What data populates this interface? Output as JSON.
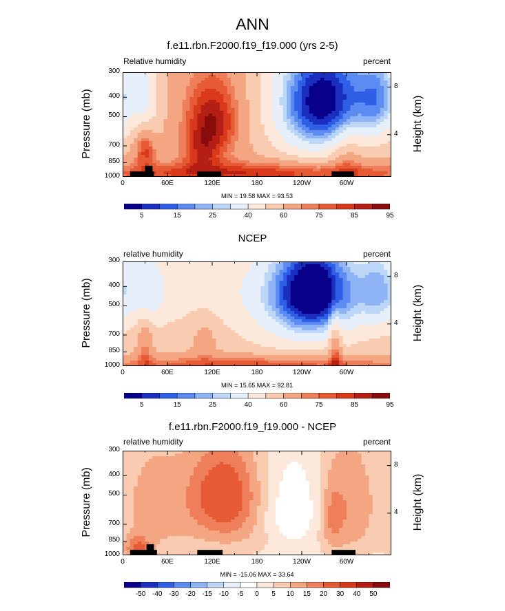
{
  "main_title": "ANN",
  "colors": {
    "scale_abs": [
      "#08008a",
      "#1a2fbf",
      "#2f5fe6",
      "#5c8cf2",
      "#8eb4f6",
      "#bcd6f7",
      "#e6effa",
      "#fde9dc",
      "#f9cbb0",
      "#f4a582",
      "#ee7f5a",
      "#e65a35",
      "#d8391a",
      "#b51e14",
      "#890c0c"
    ],
    "scale_diff": [
      "#08008a",
      "#1a2fbf",
      "#2f5fe6",
      "#5c8cf2",
      "#8eb4f6",
      "#bcd6f7",
      "#e6effa",
      "#ffffff",
      "#fde9dc",
      "#f9cbb0",
      "#f4a582",
      "#ee7f5a",
      "#e65a35",
      "#d8391a",
      "#b51e14",
      "#890c0c"
    ],
    "terrain": "#000000"
  },
  "chart_data": [
    {
      "type": "heatmap",
      "title": "f.e11.rbn.F2000.f19_f19.000 (yrs 2-5)",
      "left_label": "Relative humidity",
      "right_label": "percent",
      "ylabel": "Pressure (mb)",
      "ylabel_right": "Height (km)",
      "y_ticks": [
        "300",
        "400",
        "500",
        "700",
        "850",
        "1000"
      ],
      "y_tick_values": [
        300,
        400,
        500,
        700,
        850,
        1000
      ],
      "y_right_ticks": [
        "8",
        "4"
      ],
      "x_ticks": [
        "0",
        "60E",
        "120E",
        "180",
        "120W",
        "60W"
      ],
      "x_tick_values": [
        0,
        60,
        120,
        180,
        240,
        300
      ],
      "xlim": [
        0,
        360
      ],
      "ylim": [
        1000,
        300
      ],
      "minmax": "MIN =  19.58  MAX =  93.53",
      "colorbar_labels": [
        "5",
        "15",
        "25",
        "40",
        "60",
        "75",
        "85",
        "95"
      ],
      "scale": "abs",
      "levels": [
        5,
        10,
        15,
        20,
        25,
        30,
        40,
        50,
        60,
        70,
        75,
        80,
        85,
        90,
        95
      ],
      "features": [
        {
          "lon": 275,
          "p": 400,
          "lw": 50,
          "pw": 200,
          "v": -45
        },
        {
          "lon": 255,
          "p": 500,
          "lw": 40,
          "pw": 260,
          "v": -18
        },
        {
          "lon": 30,
          "p": 400,
          "lw": 14,
          "pw": 140,
          "v": -20
        },
        {
          "lon": 345,
          "p": 400,
          "lw": 20,
          "pw": 150,
          "v": -25
        },
        {
          "lon": 120,
          "p": 520,
          "lw": 28,
          "pw": 180,
          "v": 30
        },
        {
          "lon": 30,
          "p": 720,
          "lw": 10,
          "pw": 120,
          "v": 22
        },
        {
          "lon": 105,
          "p": 760,
          "lw": 18,
          "pw": 120,
          "v": 15
        },
        {
          "lon": 180,
          "p": 960,
          "lw": 180,
          "pw": 90,
          "v": 25
        },
        {
          "lon": 300,
          "p": 760,
          "lw": 14,
          "pw": 180,
          "v": 12
        }
      ],
      "base": 60,
      "terrain": [
        [
          10,
          940,
          42,
          1000
        ],
        [
          30,
          880,
          40,
          1000
        ],
        [
          100,
          940,
          132,
          1000
        ],
        [
          280,
          940,
          310,
          1000
        ]
      ]
    },
    {
      "type": "heatmap",
      "title": "NCEP",
      "left_label": "relative humidity",
      "right_label": "percent",
      "ylabel": "Pressure (mb)",
      "ylabel_right": "Height (km)",
      "y_ticks": [
        "300",
        "400",
        "500",
        "700",
        "850",
        "1000"
      ],
      "y_tick_values": [
        300,
        400,
        500,
        700,
        850,
        1000
      ],
      "y_right_ticks": [
        "8",
        "4"
      ],
      "x_ticks": [
        "0",
        "60E",
        "120E",
        "180",
        "120W",
        "60W"
      ],
      "x_tick_values": [
        0,
        60,
        120,
        180,
        240,
        300
      ],
      "xlim": [
        0,
        360
      ],
      "ylim": [
        1000,
        300
      ],
      "minmax": "MIN =  15.65  MAX =  92.81",
      "colorbar_labels": [
        "5",
        "15",
        "25",
        "40",
        "60",
        "75",
        "85",
        "95"
      ],
      "scale": "abs",
      "levels": [
        5,
        10,
        15,
        20,
        25,
        30,
        40,
        50,
        60,
        70,
        75,
        80,
        85,
        90,
        95
      ],
      "features": [
        {
          "lon": 260,
          "p": 420,
          "lw": 40,
          "pw": 160,
          "v": -45
        },
        {
          "lon": 240,
          "p": 500,
          "lw": 50,
          "pw": 250,
          "v": -18
        },
        {
          "lon": 120,
          "p": 420,
          "lw": 80,
          "pw": 150,
          "v": -10
        },
        {
          "lon": 35,
          "p": 420,
          "lw": 16,
          "pw": 130,
          "v": -18
        },
        {
          "lon": 345,
          "p": 420,
          "lw": 20,
          "pw": 140,
          "v": -25
        },
        {
          "lon": 180,
          "p": 990,
          "lw": 180,
          "pw": 80,
          "v": 25
        },
        {
          "lon": 30,
          "p": 780,
          "lw": 8,
          "pw": 180,
          "v": 15
        },
        {
          "lon": 285,
          "p": 780,
          "lw": 6,
          "pw": 200,
          "v": 22
        },
        {
          "lon": 110,
          "p": 720,
          "lw": 14,
          "pw": 150,
          "v": 10
        }
      ],
      "base": 55,
      "terrain": []
    },
    {
      "type": "heatmap",
      "title": "f.e11.rbn.F2000.f19_f19.000 - NCEP",
      "left_label": "relative humidity",
      "right_label": "percent",
      "ylabel": "Pressure (mb)",
      "ylabel_right": "Height (km)",
      "y_ticks": [
        "300",
        "400",
        "500",
        "700",
        "850",
        "1000"
      ],
      "y_tick_values": [
        300,
        400,
        500,
        700,
        850,
        1000
      ],
      "y_right_ticks": [
        "8",
        "4"
      ],
      "x_ticks": [
        "0",
        "60E",
        "120E",
        "180",
        "120W",
        "60W"
      ],
      "x_tick_values": [
        0,
        60,
        120,
        180,
        240,
        300
      ],
      "xlim": [
        0,
        360
      ],
      "ylim": [
        1000,
        300
      ],
      "minmax": "MIN = -15.06  MAX =  33.64",
      "colorbar_labels": [
        "-50",
        "-40",
        "-30",
        "-20",
        "-15",
        "-10",
        "-5",
        "0",
        "5",
        "10",
        "15",
        "20",
        "30",
        "40",
        "50"
      ],
      "scale": "diff",
      "levels": [
        -50,
        -40,
        -30,
        -20,
        -15,
        -10,
        -5,
        0,
        5,
        10,
        15,
        20,
        30,
        40,
        50
      ],
      "features": [
        {
          "lon": 135,
          "p": 500,
          "lw": 35,
          "pw": 200,
          "v": 24
        },
        {
          "lon": 40,
          "p": 560,
          "lw": 35,
          "pw": 320,
          "v": 10
        },
        {
          "lon": 305,
          "p": 560,
          "lw": 25,
          "pw": 300,
          "v": 12
        },
        {
          "lon": 225,
          "p": 640,
          "lw": 25,
          "pw": 200,
          "v": -8
        },
        {
          "lon": 20,
          "p": 930,
          "lw": 12,
          "pw": 90,
          "v": 16
        },
        {
          "lon": 280,
          "p": 650,
          "lw": 10,
          "pw": 200,
          "v": 8
        },
        {
          "lon": 170,
          "p": 850,
          "lw": 70,
          "pw": 150,
          "v": 4
        }
      ],
      "base": 2,
      "terrain": [
        [
          10,
          940,
          46,
          1000
        ],
        [
          32,
          880,
          42,
          1000
        ],
        [
          100,
          940,
          134,
          1000
        ],
        [
          280,
          940,
          312,
          1000
        ]
      ]
    }
  ]
}
